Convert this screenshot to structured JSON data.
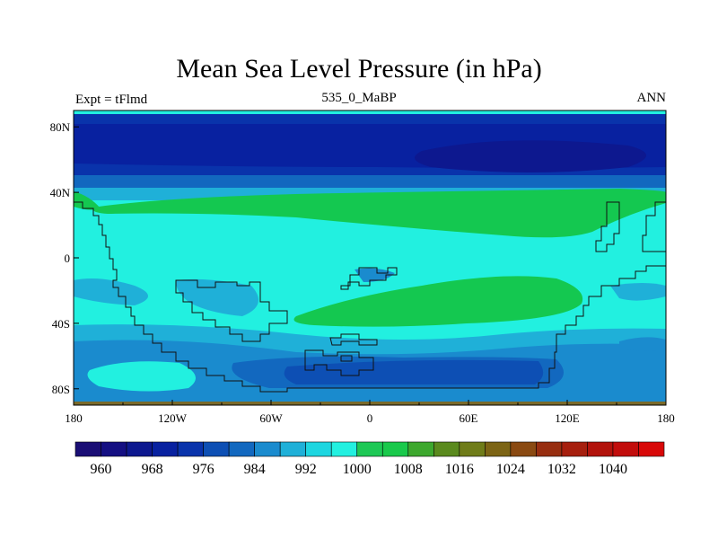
{
  "header": {
    "title": "Mean Sea Level Pressure (in hPa)",
    "left_label": "Expt = tFlmd",
    "center_label": "535_0_MaBP",
    "right_label": "ANN"
  },
  "map": {
    "x_ticks": [
      "180",
      "120W",
      "60W",
      "0",
      "60E",
      "120E",
      "180"
    ],
    "y_ticks": [
      "80N",
      "40N",
      "0",
      "40S",
      "80S"
    ],
    "longitude_range": [
      -180,
      180
    ],
    "latitude_range": [
      -90,
      90
    ]
  },
  "colorbar": {
    "labels": [
      "960",
      "968",
      "976",
      "984",
      "992",
      "1000",
      "1008",
      "1016",
      "1024",
      "1032",
      "1040"
    ],
    "colors": [
      "#1a0e75",
      "#140f82",
      "#0d188f",
      "#0821a0",
      "#0933ab",
      "#0d4fb4",
      "#1268bf",
      "#1a8bce",
      "#1fb0d8",
      "#1ed6e0",
      "#22f0e0",
      "#1ec855",
      "#19c94b",
      "#3da82e",
      "#5a8a1e",
      "#6f7c19",
      "#7c6415",
      "#8a4a12",
      "#972e10",
      "#a61f0e",
      "#b2130c",
      "#c20d0c",
      "#d80808"
    ]
  },
  "fields": {
    "ocean_1000": "#22f0e0",
    "band_996": "#1fb0d8",
    "band_992": "#1a8bce",
    "band_988": "#1268bf",
    "band_984": "#0d4fb4",
    "band_980": "#0933ab",
    "band_976": "#0821a0",
    "band_972": "#0d188f",
    "green_1004": "#14c850",
    "coast": "#111111"
  }
}
